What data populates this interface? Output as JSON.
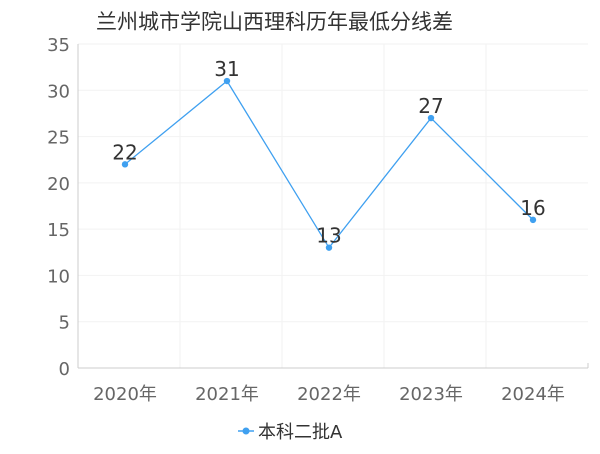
{
  "chart_data": {
    "type": "line",
    "title": "兰州城市学院山西理科历年最低分线差",
    "categories": [
      "2020年",
      "2021年",
      "2022年",
      "2023年",
      "2024年"
    ],
    "series": [
      {
        "name": "本科二批A",
        "values": [
          22,
          31,
          13,
          27,
          16
        ],
        "color": "#3fa0f0"
      }
    ],
    "ylim": [
      0,
      35
    ],
    "yticks": [
      0,
      5,
      10,
      15,
      20,
      25,
      30,
      35
    ],
    "grid": true,
    "legend_position": "bottom-center",
    "xlabel": "",
    "ylabel": ""
  }
}
